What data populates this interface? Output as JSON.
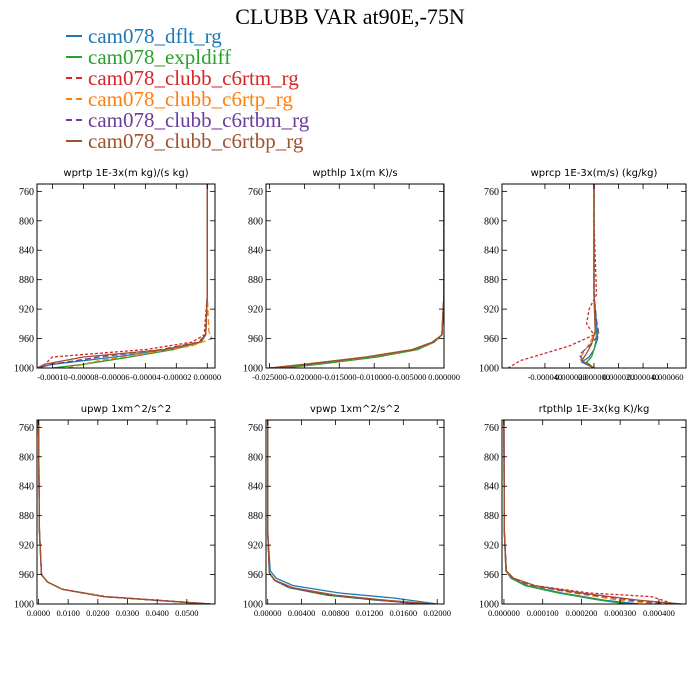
{
  "title": "CLUBB VAR at90E,-75N",
  "legend": [
    {
      "label": "cam078_dflt_rg",
      "color": "#1f77b4",
      "dash": ""
    },
    {
      "label": "cam078_expldiff",
      "color": "#2ca02c",
      "dash": ""
    },
    {
      "label": "cam078_clubb_c6rtm_rg",
      "color": "#d62728",
      "dash": "3,2"
    },
    {
      "label": "cam078_clubb_c6rtp_rg",
      "color": "#ff7f0e",
      "dash": "6,3"
    },
    {
      "label": "cam078_clubb_c6rtbm_rg",
      "color": "#6a3d9a",
      "dash": "6,3"
    },
    {
      "label": "cam078_clubb_c6rtbp_rg",
      "color": "#a0522d",
      "dash": ""
    }
  ],
  "chart_data": [
    {
      "type": "line",
      "title": "wprtp  1E-3x(m kg)/(s kg)",
      "ylim": [
        1000,
        750
      ],
      "yticks": [
        "760",
        "800",
        "840",
        "880",
        "920",
        "960",
        "1000"
      ],
      "yticks_values": [
        760,
        800,
        840,
        880,
        920,
        960,
        1000
      ],
      "xlim": [
        -0.00011,
        5e-06
      ],
      "xticks": [
        "-0.00010",
        "-0.00008",
        "-0.00006",
        "-0.00004",
        "-0.00002",
        "0.00000"
      ],
      "xticks_values": [
        -0.0001,
        -8e-05,
        -6e-05,
        -4e-05,
        -2e-05,
        0.0
      ],
      "series": [
        {
          "legend": 0,
          "y": [
            750,
            900,
            955,
            965,
            975,
            985,
            995,
            1000
          ],
          "x": [
            0.0,
            0.0,
            -1e-06,
            -5e-06,
            -2.5e-05,
            -6e-05,
            -0.0001,
            -0.00011
          ]
        },
        {
          "legend": 1,
          "y": [
            750,
            900,
            955,
            965,
            975,
            985,
            995,
            1000
          ],
          "x": [
            0.0,
            0.0,
            -1e-06,
            -4e-06,
            -2.2e-05,
            -5e-05,
            -8e-05,
            -0.0001
          ]
        },
        {
          "legend": 2,
          "y": [
            750,
            900,
            955,
            965,
            975,
            985,
            995,
            1000
          ],
          "x": [
            0.0,
            0.0,
            -2e-06,
            -1e-05,
            -4e-05,
            -0.0001,
            -0.000105,
            -0.00011
          ]
        },
        {
          "legend": 3,
          "y": [
            750,
            900,
            950,
            960,
            970,
            980,
            990,
            1000
          ],
          "x": [
            0.0,
            0.0,
            1e-06,
            3e-06,
            -1e-05,
            -4e-05,
            -7e-05,
            -9e-05
          ]
        },
        {
          "legend": 4,
          "y": [
            750,
            900,
            955,
            965,
            975,
            985,
            995,
            1000
          ],
          "x": [
            0.0,
            0.0,
            -1e-06,
            -6e-06,
            -3e-05,
            -7e-05,
            -0.0001,
            -0.00011
          ]
        },
        {
          "legend": 5,
          "y": [
            750,
            900,
            955,
            965,
            975,
            985,
            995,
            1000
          ],
          "x": [
            0.0,
            0.0,
            -1e-06,
            -5e-06,
            -2.8e-05,
            -8e-05,
            -0.000105,
            -0.00011
          ]
        }
      ]
    },
    {
      "type": "line",
      "title": "wpthlp  1x(m K)/s",
      "ylim": [
        1000,
        750
      ],
      "yticks": [
        "760",
        "800",
        "840",
        "880",
        "920",
        "960",
        "1000"
      ],
      "yticks_values": [
        760,
        800,
        840,
        880,
        920,
        960,
        1000
      ],
      "xlim": [
        -0.0255,
        0.0
      ],
      "xticks": [
        "-0.025000",
        "-0.020000",
        "-0.015000",
        "-0.010000",
        "-0.005000",
        "0.000000"
      ],
      "xticks_values": [
        -0.025,
        -0.02,
        -0.015,
        -0.01,
        -0.005,
        0.0
      ],
      "series": [
        {
          "legend": 0,
          "y": [
            750,
            900,
            955,
            965,
            975,
            985,
            995,
            1000
          ],
          "x": [
            0.0,
            0.0,
            -0.0003,
            -0.0015,
            -0.004,
            -0.01,
            -0.019,
            -0.024
          ]
        },
        {
          "legend": 1,
          "y": [
            750,
            900,
            955,
            965,
            975,
            985,
            995,
            1000
          ],
          "x": [
            0.0,
            0.0,
            -0.0003,
            -0.0014,
            -0.0038,
            -0.0095,
            -0.018,
            -0.023
          ]
        },
        {
          "legend": 2,
          "y": [
            750,
            900,
            955,
            965,
            975,
            985,
            995,
            1000
          ],
          "x": [
            0.0,
            0.0,
            -0.0003,
            -0.0016,
            -0.0045,
            -0.011,
            -0.02,
            -0.025
          ]
        },
        {
          "legend": 3,
          "y": [
            750,
            900,
            955,
            965,
            975,
            985,
            995,
            1000
          ],
          "x": [
            0.0,
            0.0,
            -0.0003,
            -0.0015,
            -0.0042,
            -0.0105,
            -0.019,
            -0.0245
          ]
        },
        {
          "legend": 4,
          "y": [
            750,
            900,
            955,
            965,
            975,
            985,
            995,
            1000
          ],
          "x": [
            0.0,
            0.0,
            -0.0003,
            -0.0016,
            -0.0044,
            -0.011,
            -0.0195,
            -0.025
          ]
        },
        {
          "legend": 5,
          "y": [
            750,
            900,
            955,
            965,
            975,
            985,
            995,
            1000
          ],
          "x": [
            0.0,
            0.0,
            -0.0003,
            -0.0017,
            -0.0046,
            -0.0112,
            -0.02,
            -0.025
          ]
        }
      ]
    },
    {
      "type": "line",
      "title": "wprcp  1E-3x(m/s) (kg/kg)",
      "ylim": [
        1000,
        750
      ],
      "yticks": [
        "760",
        "800",
        "840",
        "880",
        "920",
        "960",
        "1000"
      ],
      "yticks_values": [
        760,
        800,
        840,
        880,
        920,
        960,
        1000
      ],
      "xlim": [
        -7.5e-05,
        7.5e-05
      ],
      "xticks": [
        "-0.000040",
        "-0.000020",
        "0.000000",
        "0.000020",
        "0.000040",
        "0.000060"
      ],
      "xticks_values": [
        -4e-05,
        -2e-05,
        0.0,
        2e-05,
        4e-05,
        6e-05
      ],
      "series": [
        {
          "legend": 0,
          "y": [
            750,
            900,
            940,
            960,
            975,
            985,
            992,
            1000
          ],
          "x": [
            0.0,
            0.0,
            2e-06,
            3e-06,
            0.0,
            -4e-06,
            -1e-05,
            0.0
          ]
        },
        {
          "legend": 1,
          "y": [
            750,
            900,
            940,
            960,
            975,
            985,
            992,
            1000
          ],
          "x": [
            0.0,
            0.0,
            1e-06,
            2e-06,
            0.0,
            -2e-06,
            -6e-06,
            0.0
          ]
        },
        {
          "legend": 2,
          "y": [
            750,
            800,
            850,
            900,
            920,
            940,
            955,
            970,
            980,
            990,
            1000
          ],
          "x": [
            0.0,
            0.0,
            1e-06,
            2e-06,
            -4e-06,
            -6e-06,
            0.0,
            -2e-05,
            -4e-05,
            -6e-05,
            -7e-05
          ]
        },
        {
          "legend": 3,
          "y": [
            750,
            900,
            950,
            965,
            978,
            988,
            1000
          ],
          "x": [
            0.0,
            0.0,
            1e-06,
            -3e-06,
            -8e-06,
            -1.2e-05,
            0.0
          ]
        },
        {
          "legend": 4,
          "y": [
            750,
            900,
            935,
            955,
            970,
            982,
            992,
            1000
          ],
          "x": [
            0.0,
            0.0,
            2e-06,
            4e-06,
            -4e-06,
            -1.2e-05,
            -8e-06,
            0.0
          ]
        },
        {
          "legend": 5,
          "y": [
            750,
            900,
            950,
            968,
            980,
            990,
            1000
          ],
          "x": [
            0.0,
            0.0,
            1e-06,
            -2e-06,
            -6e-06,
            -1e-05,
            0.0
          ]
        }
      ]
    },
    {
      "type": "line",
      "title": "upwp   1xm^2/s^2",
      "ylim": [
        1000,
        750
      ],
      "yticks": [
        "760",
        "800",
        "840",
        "880",
        "920",
        "960",
        "1000"
      ],
      "yticks_values": [
        760,
        800,
        840,
        880,
        920,
        960,
        1000
      ],
      "xlim": [
        -0.0005,
        0.0595
      ],
      "xticks": [
        "0.0000",
        "0.0100",
        "0.0200",
        "0.0300",
        "0.0400",
        "0.0500"
      ],
      "xticks_values": [
        0.0,
        0.01,
        0.02,
        0.03,
        0.04,
        0.05
      ],
      "series": [
        {
          "legend": 0,
          "y": [
            750,
            900,
            960,
            970,
            980,
            990,
            1000
          ],
          "x": [
            0.0,
            0.0003,
            0.001,
            0.003,
            0.008,
            0.022,
            0.058
          ]
        },
        {
          "legend": 1,
          "y": [
            750,
            900,
            960,
            970,
            980,
            990,
            1000
          ],
          "x": [
            0.0,
            0.0003,
            0.001,
            0.003,
            0.008,
            0.022,
            0.057
          ]
        },
        {
          "legend": 2,
          "y": [
            750,
            900,
            960,
            970,
            980,
            990,
            1000
          ],
          "x": [
            0.0,
            0.0003,
            0.001,
            0.003,
            0.008,
            0.023,
            0.058
          ]
        },
        {
          "legend": 3,
          "y": [
            750,
            900,
            960,
            970,
            980,
            990,
            1000
          ],
          "x": [
            0.0,
            0.0003,
            0.001,
            0.003,
            0.008,
            0.022,
            0.058
          ]
        },
        {
          "legend": 4,
          "y": [
            750,
            900,
            960,
            970,
            980,
            990,
            1000
          ],
          "x": [
            0.0,
            0.0003,
            0.001,
            0.003,
            0.008,
            0.022,
            0.058
          ]
        },
        {
          "legend": 5,
          "y": [
            750,
            900,
            960,
            970,
            980,
            990,
            1000
          ],
          "x": [
            0.0,
            0.0003,
            0.001,
            0.003,
            0.008,
            0.022,
            0.058
          ]
        }
      ]
    },
    {
      "type": "line",
      "title": "vpwp   1xm^2/s^2",
      "ylim": [
        1000,
        750
      ],
      "yticks": [
        "760",
        "800",
        "840",
        "880",
        "920",
        "960",
        "1000"
      ],
      "yticks_values": [
        760,
        800,
        840,
        880,
        920,
        960,
        1000
      ],
      "xlim": [
        -0.0002,
        0.0208
      ],
      "xticks": [
        "0.00000",
        "0.00400",
        "0.00800",
        "0.01200",
        "0.01600",
        "0.02000"
      ],
      "xticks_values": [
        0.0,
        0.004,
        0.008,
        0.012,
        0.016,
        0.02
      ],
      "series": [
        {
          "legend": 0,
          "y": [
            750,
            900,
            955,
            965,
            975,
            985,
            992,
            1000
          ],
          "x": [
            0.0,
            0.0,
            0.0003,
            0.001,
            0.003,
            0.0085,
            0.015,
            0.02
          ]
        },
        {
          "legend": 1,
          "y": [
            750,
            900,
            958,
            968,
            978,
            988,
            995,
            1000
          ],
          "x": [
            0.0,
            0.0,
            0.0002,
            0.0008,
            0.0025,
            0.007,
            0.013,
            0.019
          ]
        },
        {
          "legend": 2,
          "y": [
            750,
            900,
            958,
            968,
            978,
            988,
            995,
            1000
          ],
          "x": [
            0.0,
            0.0,
            0.0002,
            0.0008,
            0.0028,
            0.0075,
            0.0135,
            0.018
          ]
        },
        {
          "legend": 3,
          "y": [
            750,
            900,
            958,
            968,
            978,
            988,
            995,
            1000
          ],
          "x": [
            0.0,
            0.0,
            0.0002,
            0.0009,
            0.0028,
            0.0075,
            0.014,
            0.0195
          ]
        },
        {
          "legend": 4,
          "y": [
            750,
            900,
            958,
            968,
            978,
            988,
            995,
            1000
          ],
          "x": [
            0.0,
            0.0,
            0.0002,
            0.0008,
            0.0027,
            0.0073,
            0.0132,
            0.0185
          ]
        },
        {
          "legend": 5,
          "y": [
            750,
            900,
            958,
            968,
            978,
            988,
            995,
            1000
          ],
          "x": [
            0.0,
            0.0,
            0.0002,
            0.0009,
            0.003,
            0.008,
            0.014,
            0.0195
          ]
        }
      ]
    },
    {
      "type": "line",
      "title": "rtpthlp   1E-3x(kg K)/kg",
      "ylim": [
        1000,
        750
      ],
      "yticks": [
        "760",
        "800",
        "840",
        "880",
        "920",
        "960",
        "1000"
      ],
      "yticks_values": [
        760,
        800,
        840,
        880,
        920,
        960,
        1000
      ],
      "xlim": [
        -5e-06,
        0.00047
      ],
      "xticks": [
        "0.000000",
        "0.000100",
        "0.000200",
        "0.000300",
        "0.000400"
      ],
      "xticks_values": [
        0.0,
        0.0001,
        0.0002,
        0.0003,
        0.0004
      ],
      "series": [
        {
          "legend": 0,
          "y": [
            750,
            900,
            955,
            965,
            975,
            985,
            995,
            1000
          ],
          "x": [
            0.0,
            1e-06,
            5e-06,
            2e-05,
            6e-05,
            0.00015,
            0.00026,
            0.00035
          ]
        },
        {
          "legend": 1,
          "y": [
            750,
            900,
            955,
            965,
            975,
            985,
            995,
            1000
          ],
          "x": [
            0.0,
            1e-06,
            5e-06,
            1.8e-05,
            5.5e-05,
            0.00014,
            0.00025,
            0.00032
          ]
        },
        {
          "legend": 2,
          "y": [
            750,
            900,
            955,
            965,
            975,
            985,
            990,
            1000
          ],
          "x": [
            0.0,
            1e-06,
            6e-06,
            2.4e-05,
            8e-05,
            0.00022,
            0.00038,
            0.00044
          ]
        },
        {
          "legend": 3,
          "y": [
            750,
            900,
            955,
            965,
            975,
            985,
            995,
            1000
          ],
          "x": [
            0.0,
            1e-06,
            5e-06,
            2e-05,
            7e-05,
            0.00018,
            0.0003,
            0.0004
          ]
        },
        {
          "legend": 4,
          "y": [
            750,
            900,
            955,
            965,
            975,
            985,
            995,
            1000
          ],
          "x": [
            0.0,
            1e-06,
            6e-06,
            2.2e-05,
            7.2e-05,
            0.00019,
            0.00033,
            0.00043
          ]
        },
        {
          "legend": 5,
          "y": [
            750,
            900,
            955,
            965,
            975,
            985,
            995,
            1000
          ],
          "x": [
            0.0,
            1e-06,
            6e-06,
            2.5e-05,
            8e-05,
            0.0002,
            0.00035,
            0.00046
          ]
        }
      ]
    }
  ]
}
